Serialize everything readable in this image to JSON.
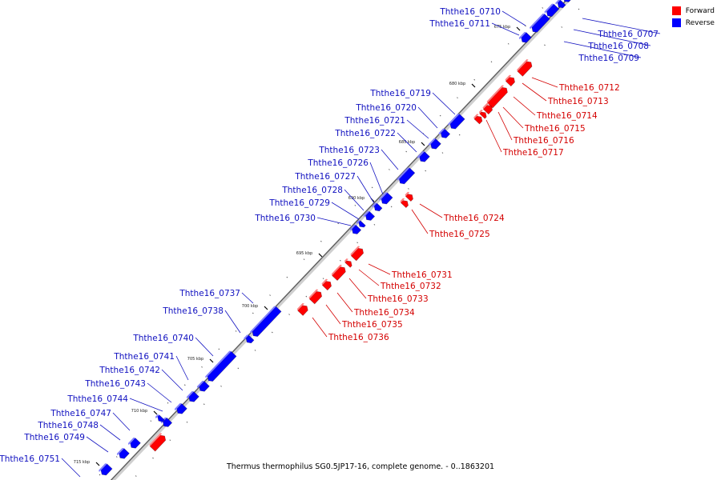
{
  "legend": {
    "forward_label": "Forward",
    "reverse_label": "Reverse",
    "forward_color": "#ff0000",
    "reverse_color": "#0000ff"
  },
  "caption": "Thermus thermophilus SG0.5JP17-16, complete genome. - 0..1863201",
  "tick_labels": [
    "675 kbp",
    "680 kbp",
    "685 kbp",
    "690 kbp",
    "695 kbp",
    "700 kbp",
    "705 kbp",
    "710 kbp",
    "715 kbp"
  ],
  "genes": [
    {
      "id": "Ththe16_0707",
      "strand": "reverse"
    },
    {
      "id": "Ththe16_0708",
      "strand": "reverse"
    },
    {
      "id": "Ththe16_0709",
      "strand": "reverse"
    },
    {
      "id": "Ththe16_0710",
      "strand": "reverse"
    },
    {
      "id": "Ththe16_0711",
      "strand": "reverse"
    },
    {
      "id": "Ththe16_0712",
      "strand": "forward"
    },
    {
      "id": "Ththe16_0713",
      "strand": "forward"
    },
    {
      "id": "Ththe16_0714",
      "strand": "forward"
    },
    {
      "id": "Ththe16_0715",
      "strand": "forward"
    },
    {
      "id": "Ththe16_0716",
      "strand": "forward"
    },
    {
      "id": "Ththe16_0717",
      "strand": "forward"
    },
    {
      "id": "Ththe16_0719",
      "strand": "reverse"
    },
    {
      "id": "Ththe16_0720",
      "strand": "reverse"
    },
    {
      "id": "Ththe16_0721",
      "strand": "reverse"
    },
    {
      "id": "Ththe16_0722",
      "strand": "reverse"
    },
    {
      "id": "Ththe16_0723",
      "strand": "reverse"
    },
    {
      "id": "Ththe16_0724",
      "strand": "forward"
    },
    {
      "id": "Ththe16_0725",
      "strand": "forward"
    },
    {
      "id": "Ththe16_0726",
      "strand": "reverse"
    },
    {
      "id": "Ththe16_0727",
      "strand": "reverse"
    },
    {
      "id": "Ththe16_0728",
      "strand": "reverse"
    },
    {
      "id": "Ththe16_0729",
      "strand": "reverse"
    },
    {
      "id": "Ththe16_0730",
      "strand": "reverse"
    },
    {
      "id": "Ththe16_0731",
      "strand": "forward"
    },
    {
      "id": "Ththe16_0732",
      "strand": "forward"
    },
    {
      "id": "Ththe16_0733",
      "strand": "forward"
    },
    {
      "id": "Ththe16_0734",
      "strand": "forward"
    },
    {
      "id": "Ththe16_0735",
      "strand": "forward"
    },
    {
      "id": "Ththe16_0736",
      "strand": "forward"
    },
    {
      "id": "Ththe16_0737",
      "strand": "reverse"
    },
    {
      "id": "Ththe16_0738",
      "strand": "reverse"
    },
    {
      "id": "Ththe16_0740",
      "strand": "reverse"
    },
    {
      "id": "Ththe16_0741",
      "strand": "reverse"
    },
    {
      "id": "Ththe16_0742",
      "strand": "reverse"
    },
    {
      "id": "Ththe16_0743",
      "strand": "reverse"
    },
    {
      "id": "Ththe16_0744",
      "strand": "reverse"
    },
    {
      "id": "Ththe16_0747",
      "strand": "reverse"
    },
    {
      "id": "Ththe16_0748",
      "strand": "reverse"
    },
    {
      "id": "Ththe16_0749",
      "strand": "reverse"
    },
    {
      "id": "Ththe16_0751",
      "strand": "reverse"
    }
  ]
}
